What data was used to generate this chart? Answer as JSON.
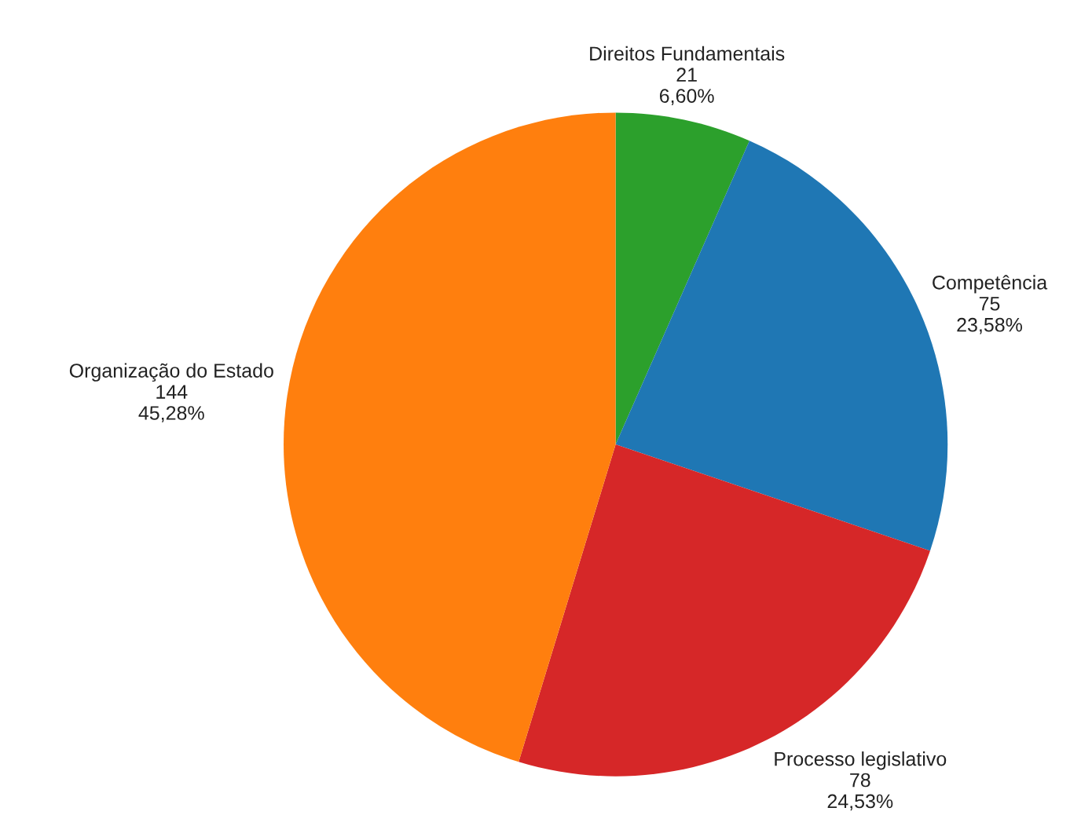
{
  "chart_data": {
    "type": "pie",
    "categories": [
      "Direitos Fundamentais",
      "Competência",
      "Processo legislativo",
      "Organização do Estado"
    ],
    "values": [
      21,
      75,
      78,
      144
    ],
    "colors": [
      "#2ca02c",
      "#1f77b4",
      "#d62728",
      "#ff7f0e"
    ],
    "value_labels": [
      "21\n6,60%",
      "75\n23,58%",
      "78\n24,53%",
      "144\n45,28%"
    ]
  }
}
